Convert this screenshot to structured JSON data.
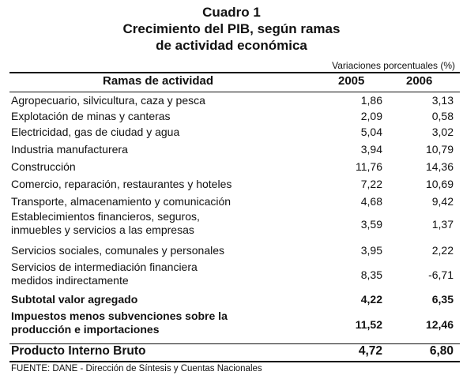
{
  "title": [
    "Cuadro 1",
    "Crecimiento del PIB, según ramas",
    "de actividad  económica"
  ],
  "units_note": "Variaciones porcentuales (%)",
  "columns": [
    "Ramas de actividad",
    "2005",
    "2006"
  ],
  "rows": [
    {
      "label": "Agropecuario, silvicultura, caza y  pesca",
      "v2005": "1,86",
      "v2006": "3,13"
    },
    {
      "label": "Explotación de minas y canteras",
      "v2005": "2,09",
      "v2006": "0,58"
    },
    {
      "label": "Electricidad, gas de ciudad y agua",
      "v2005": "5,04",
      "v2006": "3,02"
    },
    {
      "label": "Industria manufacturera",
      "v2005": "3,94",
      "v2006": "10,79"
    },
    {
      "label": "Construcción",
      "v2005": "11,76",
      "v2006": "14,36"
    },
    {
      "label": "Comercio, reparación, restaurantes y hoteles",
      "v2005": "7,22",
      "v2006": "10,69"
    },
    {
      "label": "Transporte, almacenamiento y comunicación",
      "v2005": "4,68",
      "v2006": "9,42"
    },
    {
      "label": "Establecimientos financieros, seguros, inmuebles y servicios a las empresas",
      "v2005": "3,59",
      "v2006": "1,37"
    },
    {
      "label": "Servicios sociales, comunales y personales",
      "v2005": "3,95",
      "v2006": "2,22"
    },
    {
      "label": "Servicios de intermediación financiera medidos indirectamente",
      "v2005": "8,35",
      "v2006": "-6,71"
    },
    {
      "label": "Subtotal valor agregado",
      "v2005": "4,22",
      "v2006": "6,35"
    },
    {
      "label": "Impuestos menos subvenciones sobre la producción e importaciones",
      "v2005": "11,52",
      "v2006": "12,46"
    },
    {
      "label": "Producto Interno  Bruto",
      "v2005": "4,72",
      "v2006": "6,80"
    }
  ],
  "source": "FUENTE: DANE - Dirección de Síntesis y Cuentas Nacionales"
}
